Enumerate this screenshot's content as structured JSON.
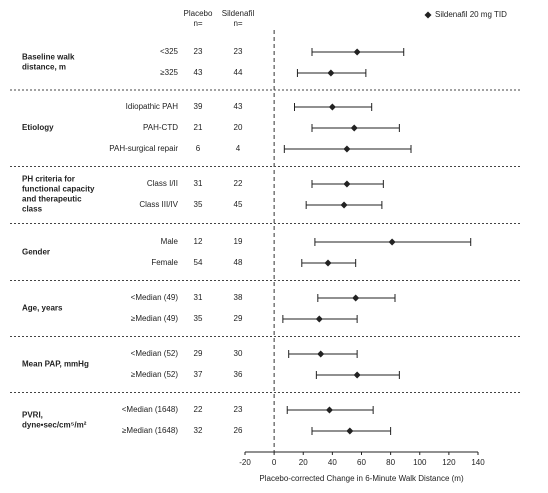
{
  "chart_data": {
    "type": "forest",
    "legend": "Sildenafil 20 mg TID",
    "marker_color": "#222222",
    "column_headers": [
      [
        "Placebo",
        "n="
      ],
      [
        "Sildenafil",
        "n="
      ]
    ],
    "x_label": "Placebo-corrected Change in 6-Minute Walk Distance (m)",
    "xlim": [
      -20,
      140
    ],
    "xticks": [
      -20,
      0,
      20,
      40,
      60,
      80,
      100,
      120,
      140
    ],
    "groups": [
      {
        "label": [
          "Baseline walk",
          "distance, m"
        ],
        "categories": [
          "<325",
          "≥325"
        ],
        "placebo_n": [
          23,
          43
        ],
        "sildenafil_n": [
          23,
          44
        ],
        "values": [
          57,
          39
        ],
        "lower": [
          26,
          16
        ],
        "upper": [
          89,
          63
        ]
      },
      {
        "label": [
          "Etiology"
        ],
        "categories": [
          "Idiopathic PAH",
          "PAH-CTD",
          "PAH-surgical repair"
        ],
        "placebo_n": [
          39,
          21,
          6
        ],
        "sildenafil_n": [
          43,
          20,
          4
        ],
        "values": [
          40,
          55,
          50
        ],
        "lower": [
          14,
          26,
          7
        ],
        "upper": [
          67,
          86,
          94
        ]
      },
      {
        "label": [
          "PH criteria for",
          "functional capacity",
          "and therapeutic",
          "class"
        ],
        "categories": [
          "Class I/II",
          "Class III/IV"
        ],
        "placebo_n": [
          31,
          35
        ],
        "sildenafil_n": [
          22,
          45
        ],
        "values": [
          50,
          48
        ],
        "lower": [
          26,
          22
        ],
        "upper": [
          75,
          74
        ]
      },
      {
        "label": [
          "Gender"
        ],
        "categories": [
          "Male",
          "Female"
        ],
        "placebo_n": [
          12,
          54
        ],
        "sildenafil_n": [
          19,
          48
        ],
        "values": [
          81,
          37
        ],
        "lower": [
          28,
          19
        ],
        "upper": [
          135,
          56
        ]
      },
      {
        "label": [
          "Age, years"
        ],
        "categories": [
          "<Median (49)",
          "≥Median (49)"
        ],
        "placebo_n": [
          31,
          35
        ],
        "sildenafil_n": [
          38,
          29
        ],
        "values": [
          56,
          31
        ],
        "lower": [
          30,
          6
        ],
        "upper": [
          83,
          57
        ]
      },
      {
        "label": [
          "Mean PAP, mmHg"
        ],
        "categories": [
          "<Median (52)",
          "≥Median (52)"
        ],
        "placebo_n": [
          29,
          37
        ],
        "sildenafil_n": [
          30,
          36
        ],
        "values": [
          32,
          57
        ],
        "lower": [
          10,
          29
        ],
        "upper": [
          57,
          86
        ]
      },
      {
        "label": [
          "PVRI,",
          "dyne•sec/cm⁵/m²"
        ],
        "categories": [
          "<Median (1648)",
          "≥Median (1648)"
        ],
        "placebo_n": [
          22,
          32
        ],
        "sildenafil_n": [
          23,
          26
        ],
        "values": [
          38,
          52
        ],
        "lower": [
          9,
          26
        ],
        "upper": [
          68,
          80
        ]
      }
    ]
  }
}
